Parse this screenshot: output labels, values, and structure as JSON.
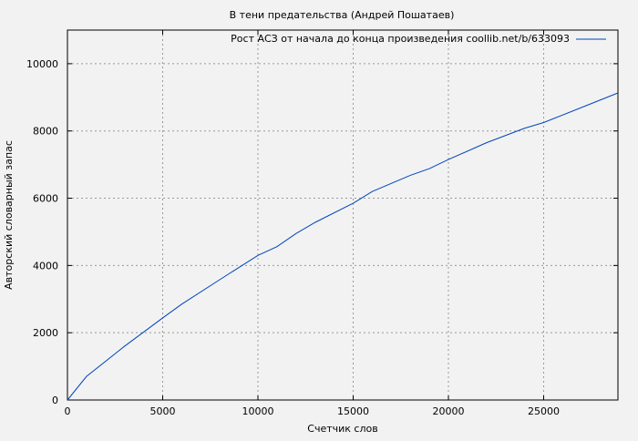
{
  "chart_data": {
    "type": "line",
    "title": "В тени предательства (Андрей Пошатаев)",
    "xlabel": "Счетчик слов",
    "ylabel": "Авторский словарный запас",
    "xlim": [
      0,
      28900
    ],
    "ylim": [
      0,
      11000
    ],
    "xticks": [
      0,
      5000,
      10000,
      15000,
      20000,
      25000
    ],
    "yticks": [
      0,
      2000,
      4000,
      6000,
      8000,
      10000
    ],
    "grid": true,
    "legend_position": "top-right",
    "series": [
      {
        "name": "Рост АСЗ от начала до конца произведения coollib.net/b/633093",
        "color": "#0044bb",
        "x": [
          0,
          1000,
          3000,
          5000,
          6000,
          8000,
          10000,
          11000,
          12000,
          13000,
          15000,
          16000,
          18000,
          19000,
          20000,
          22000,
          24000,
          25000,
          27000,
          28900
        ],
        "y": [
          0,
          700,
          1600,
          2440,
          2850,
          3580,
          4300,
          4560,
          4950,
          5280,
          5850,
          6200,
          6680,
          6880,
          7150,
          7650,
          8080,
          8250,
          8700,
          9130
        ]
      }
    ]
  }
}
